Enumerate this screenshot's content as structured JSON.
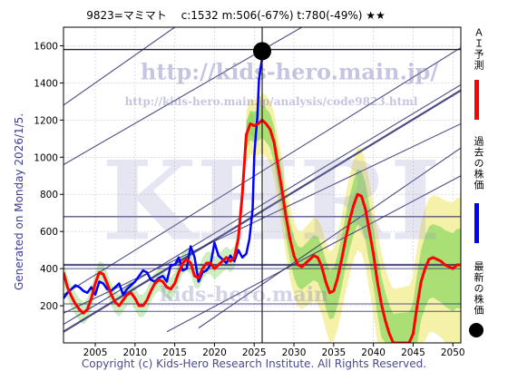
{
  "title": "9823=マミマト　 c:1532  m:506(-67%)  t:780(-49%)  ★★",
  "generated_text": "Generated on Monday 2026/1/5.",
  "copyright": "Copyright (c) Kids-Hero Research Institute. All Rights Reserved.",
  "watermark": {
    "url": "http://kids-hero.main.jp/",
    "analysis_url": "http://kids-hero.main.jp/analysis/code9823.html",
    "big": "KHRI",
    "lower": "kids-hero.main"
  },
  "legend": [
    {
      "label": "ＡＩ予測",
      "color": "#ff0000",
      "kind": "line"
    },
    {
      "label": "過去の株価",
      "color": "#0000ff",
      "kind": "line"
    },
    {
      "label": "最新の株価",
      "color": "#000000",
      "kind": "dot"
    }
  ],
  "colors": {
    "ai_prediction": "#ff0000",
    "past_price": "#0000ff",
    "latest_dot": "#000000",
    "band_green": "#6ccf4c",
    "band_yellow": "#f4f0a0",
    "trend_lines": "#2e2e6e",
    "grid": "#c8c8c8"
  },
  "chart_data": {
    "type": "line",
    "xlim": [
      2001,
      2051
    ],
    "ylim": [
      0,
      1700
    ],
    "x_ticks": [
      2005,
      2010,
      2015,
      2020,
      2025,
      2030,
      2035,
      2040,
      2045,
      2050
    ],
    "y_ticks": [
      200,
      400,
      600,
      800,
      1000,
      1200,
      1400,
      1600
    ],
    "grid": true,
    "latest": {
      "x": 2026.0,
      "y": 1532
    },
    "crosshair": {
      "x": 2026.0,
      "y": 1580
    },
    "series": [
      {
        "role": "past",
        "x": [
          2001.0,
          2001.5,
          2002.0,
          2002.5,
          2003.0,
          2003.5,
          2004.0,
          2004.5,
          2005.0,
          2005.5,
          2006.0,
          2006.5,
          2007.0,
          2007.5,
          2008.0,
          2008.5,
          2009.0,
          2009.5,
          2010.0,
          2010.5,
          2011.0,
          2011.5,
          2012.0,
          2012.5,
          2013.0,
          2013.5,
          2014.0,
          2014.5,
          2015.0,
          2015.5,
          2016.0,
          2016.5,
          2017.0,
          2017.5,
          2018.0,
          2018.5,
          2019.0,
          2019.5,
          2020.0,
          2020.5,
          2021.0,
          2021.5,
          2022.0,
          2022.5,
          2023.0,
          2023.5,
          2024.0,
          2024.4,
          2024.8,
          2025.0,
          2025.2,
          2025.4,
          2025.6,
          2025.8,
          2026.0
        ],
        "y": [
          240,
          270,
          290,
          310,
          300,
          280,
          270,
          300,
          260,
          330,
          320,
          290,
          280,
          300,
          320,
          260,
          290,
          310,
          330,
          360,
          390,
          380,
          340,
          330,
          350,
          360,
          330,
          420,
          420,
          460,
          390,
          400,
          520,
          460,
          330,
          380,
          390,
          420,
          540,
          470,
          450,
          430,
          470,
          440,
          500,
          460,
          480,
          560,
          720,
          1000,
          1120,
          1220,
          1420,
          1480,
          1532
        ]
      },
      {
        "role": "ai",
        "x": [
          2001.0,
          2001.5,
          2002.0,
          2002.5,
          2003.0,
          2003.5,
          2004.0,
          2004.5,
          2005.0,
          2005.5,
          2006.0,
          2006.5,
          2007.0,
          2007.5,
          2008.0,
          2008.5,
          2009.0,
          2009.5,
          2010.0,
          2010.5,
          2011.0,
          2011.5,
          2012.0,
          2012.5,
          2013.0,
          2013.5,
          2014.0,
          2014.5,
          2015.0,
          2015.5,
          2016.0,
          2016.5,
          2017.0,
          2017.5,
          2018.0,
          2018.5,
          2019.0,
          2019.5,
          2020.0,
          2020.5,
          2021.0,
          2021.5,
          2022.0,
          2022.5,
          2023.0,
          2023.5,
          2024.0,
          2024.5,
          2025.0,
          2025.5,
          2026.0,
          2026.5,
          2027.0,
          2027.5,
          2028.0,
          2028.5,
          2029.0,
          2029.5,
          2030.0,
          2030.5,
          2031.0,
          2031.5,
          2032.0,
          2032.5,
          2033.0,
          2033.5,
          2034.0,
          2034.5,
          2035.0,
          2035.5,
          2036.0,
          2036.5,
          2037.0,
          2037.5,
          2038.0,
          2038.5,
          2039.0,
          2039.5,
          2040.0,
          2040.5,
          2041.0,
          2041.5,
          2042.0,
          2042.5,
          2043.0,
          2043.5,
          2044.0,
          2044.5,
          2045.0,
          2045.5,
          2046.0,
          2046.5,
          2047.0,
          2047.5,
          2048.0,
          2048.5,
          2049.0,
          2049.5,
          2050.0,
          2050.5,
          2051.0
        ],
        "y": [
          380,
          300,
          250,
          210,
          180,
          160,
          180,
          240,
          320,
          380,
          370,
          320,
          260,
          220,
          200,
          230,
          260,
          270,
          240,
          200,
          200,
          230,
          280,
          320,
          340,
          330,
          300,
          290,
          320,
          380,
          430,
          450,
          430,
          360,
          350,
          400,
          430,
          430,
          400,
          420,
          440,
          460,
          440,
          460,
          560,
          800,
          1120,
          1180,
          1170,
          1180,
          1200,
          1180,
          1150,
          1080,
          950,
          820,
          680,
          560,
          470,
          420,
          410,
          430,
          450,
          470,
          460,
          410,
          330,
          270,
          280,
          350,
          450,
          560,
          660,
          740,
          800,
          790,
          720,
          600,
          480,
          330,
          210,
          120,
          50,
          0,
          0,
          0,
          0,
          0,
          50,
          200,
          330,
          400,
          450,
          460,
          450,
          440,
          420,
          410,
          400,
          420,
          420
        ]
      }
    ]
  }
}
